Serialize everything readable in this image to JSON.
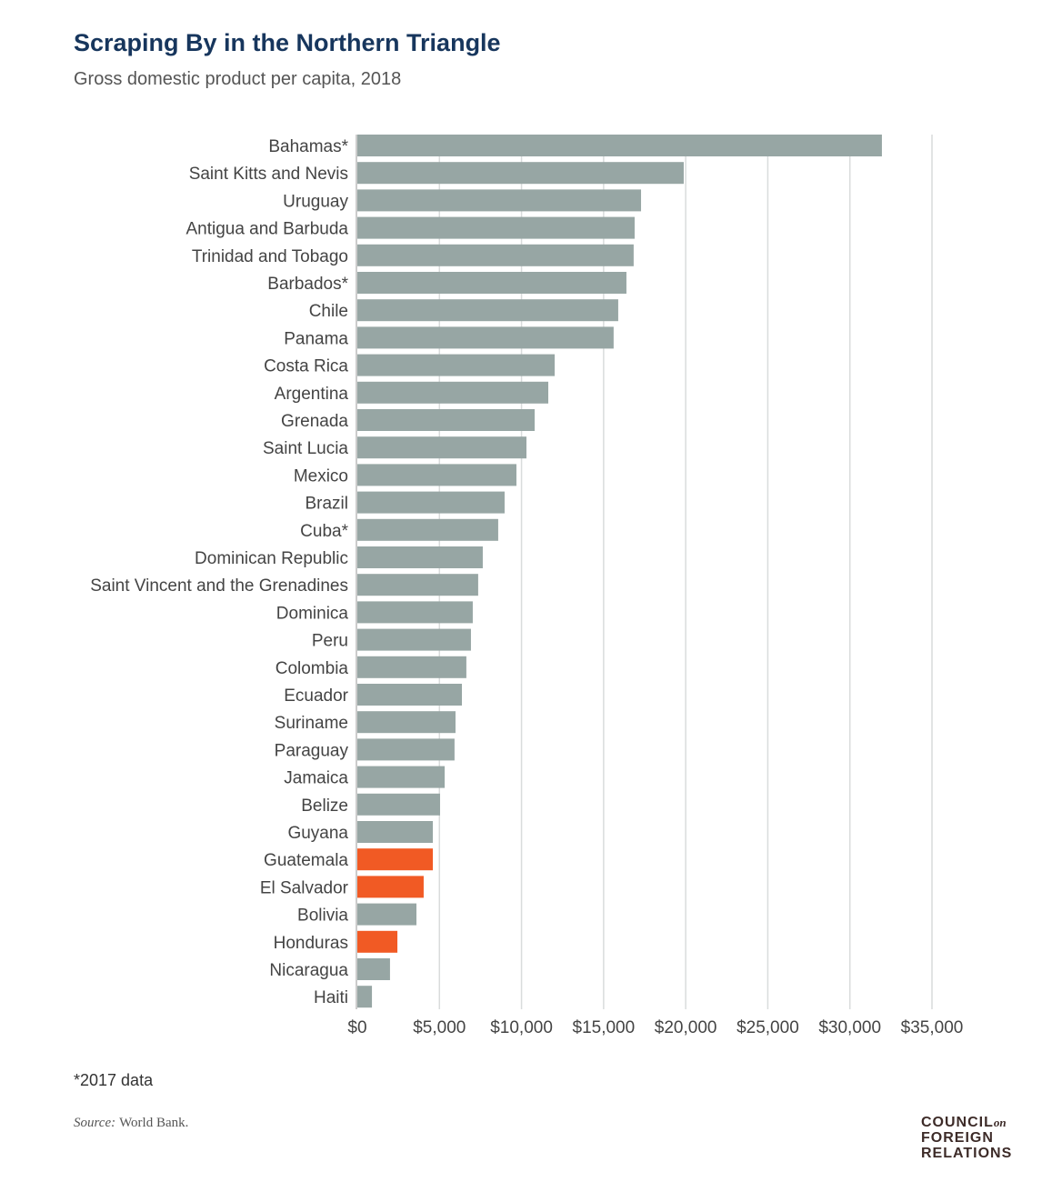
{
  "title": "Scraping By in the Northern Triangle",
  "subtitle": "Gross domestic product per capita, 2018",
  "note": "*2017 data",
  "source_label": "Source:",
  "source_text": "World Bank.",
  "logo": {
    "line1": "COUNCIL",
    "on": "on",
    "line2": "FOREIGN",
    "line3": "RELATIONS"
  },
  "colors": {
    "default": "#97a6a4",
    "highlight": "#f15a24",
    "grid": "#d9dcdc"
  },
  "chart_data": {
    "type": "bar",
    "orientation": "horizontal",
    "title": "Scraping By in the Northern Triangle",
    "subtitle": "Gross domestic product per capita, 2018",
    "xlabel": "",
    "ylabel": "",
    "xlim": [
      0,
      35000
    ],
    "grid": true,
    "x_ticks": [
      0,
      5000,
      10000,
      15000,
      20000,
      25000,
      30000,
      35000
    ],
    "x_tick_labels": [
      "$0",
      "$5,000",
      "$10,000",
      "$15,000",
      "$20,000",
      "$25,000",
      "$30,000",
      "$35,000"
    ],
    "categories": [
      "Bahamas*",
      "Saint Kitts and Nevis",
      "Uruguay",
      "Antigua and Barbuda",
      "Trinidad and Tobago",
      "Barbados*",
      "Chile",
      "Panama",
      "Costa Rica",
      "Argentina",
      "Grenada",
      "Saint Lucia",
      "Mexico",
      "Brazil",
      "Cuba*",
      "Dominican Republic",
      "Saint Vincent and the Grenadines",
      "Dominica",
      "Peru",
      "Colombia",
      "Ecuador",
      "Suriname",
      "Paraguay",
      "Jamaica",
      "Belize",
      "Guyana",
      "Guatemala",
      "El Salvador",
      "Bolivia",
      "Honduras",
      "Nicaragua",
      "Haiti"
    ],
    "values": [
      31950,
      19880,
      17280,
      16890,
      16830,
      16390,
      15890,
      15610,
      12020,
      11630,
      10800,
      10300,
      9690,
      8970,
      8580,
      7640,
      7360,
      7030,
      6920,
      6640,
      6370,
      5980,
      5920,
      5320,
      5040,
      4600,
      4600,
      4040,
      3600,
      2440,
      1990,
      890
    ],
    "highlighted": [
      "Guatemala",
      "El Salvador",
      "Honduras"
    ]
  }
}
